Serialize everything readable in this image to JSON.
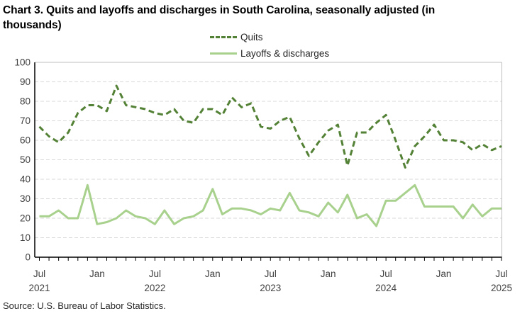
{
  "title": "Chart 3. Quits and layoffs and discharges in South Carolina, seasonally adjusted (in thousands)",
  "source": "Source: U.S. Bureau of Labor Statistics.",
  "legend": {
    "quits": "Quits",
    "layoffs": "Layoffs & discharges"
  },
  "colors": {
    "quits": "#538135",
    "layoffs": "#a9d18e",
    "grid": "#d9d9d9",
    "plot_border": "#bfbfbf",
    "axis": "#000000",
    "tick_label": "#404040"
  },
  "chart_data": {
    "type": "line",
    "title": "Chart 3. Quits and layoffs and discharges in South Carolina, seasonally adjusted (in thousands)",
    "xlabel": "",
    "ylabel": "",
    "ylim": [
      0,
      100
    ],
    "y_ticks": [
      0,
      10,
      20,
      30,
      40,
      50,
      60,
      70,
      80,
      90,
      100
    ],
    "x_tick_labels": [
      "Jul",
      "Jan",
      "Jul",
      "Jan",
      "Jul",
      "Jan",
      "Jul",
      "Jan",
      "Jul"
    ],
    "x_year_labels": [
      "2021",
      "2022",
      "2023",
      "2024",
      "2025"
    ],
    "grid": "horizontal-dashed",
    "legend_position": "top-center",
    "months": [
      "Jul 2021",
      "Aug 2021",
      "Sep 2021",
      "Oct 2021",
      "Nov 2021",
      "Dec 2021",
      "Jan 2022",
      "Feb 2022",
      "Mar 2022",
      "Apr 2022",
      "May 2022",
      "Jun 2022",
      "Jul 2022",
      "Aug 2022",
      "Sep 2022",
      "Oct 2022",
      "Nov 2022",
      "Dec 2022",
      "Jan 2023",
      "Feb 2023",
      "Mar 2023",
      "Apr 2023",
      "May 2023",
      "Jun 2023",
      "Jul 2023",
      "Aug 2023",
      "Sep 2023",
      "Oct 2023",
      "Nov 2023",
      "Dec 2023",
      "Jan 2024",
      "Feb 2024",
      "Mar 2024",
      "Apr 2024",
      "May 2024",
      "Jun 2024",
      "Jul 2024",
      "Aug 2024",
      "Sep 2024",
      "Oct 2024",
      "Nov 2024",
      "Dec 2024",
      "Jan 2025",
      "Feb 2025",
      "Mar 2025",
      "Apr 2025",
      "May 2025",
      "Jun 2025",
      "Jul 2025"
    ],
    "series": [
      {
        "name": "Quits",
        "style": "dashed",
        "color": "#538135",
        "values": [
          67,
          62,
          59,
          64,
          74,
          78,
          78,
          75,
          88,
          78,
          77,
          76,
          74,
          73,
          76,
          70,
          69,
          76,
          76,
          73,
          82,
          77,
          79,
          67,
          66,
          70,
          72,
          61,
          52,
          59,
          65,
          68,
          47,
          64,
          64,
          69,
          73,
          60,
          46,
          57,
          62,
          68,
          60,
          60,
          59,
          55,
          58,
          55,
          57
        ]
      },
      {
        "name": "Layoffs & discharges",
        "style": "solid",
        "color": "#a9d18e",
        "values": [
          21,
          21,
          24,
          20,
          20,
          37,
          17,
          18,
          20,
          24,
          21,
          20,
          17,
          24,
          17,
          20,
          21,
          24,
          35,
          22,
          25,
          25,
          24,
          22,
          25,
          24,
          33,
          24,
          23,
          21,
          28,
          23,
          32,
          20,
          22,
          16,
          29,
          29,
          33,
          37,
          26,
          26,
          26,
          26,
          20,
          27,
          21,
          25,
          25
        ]
      }
    ]
  }
}
